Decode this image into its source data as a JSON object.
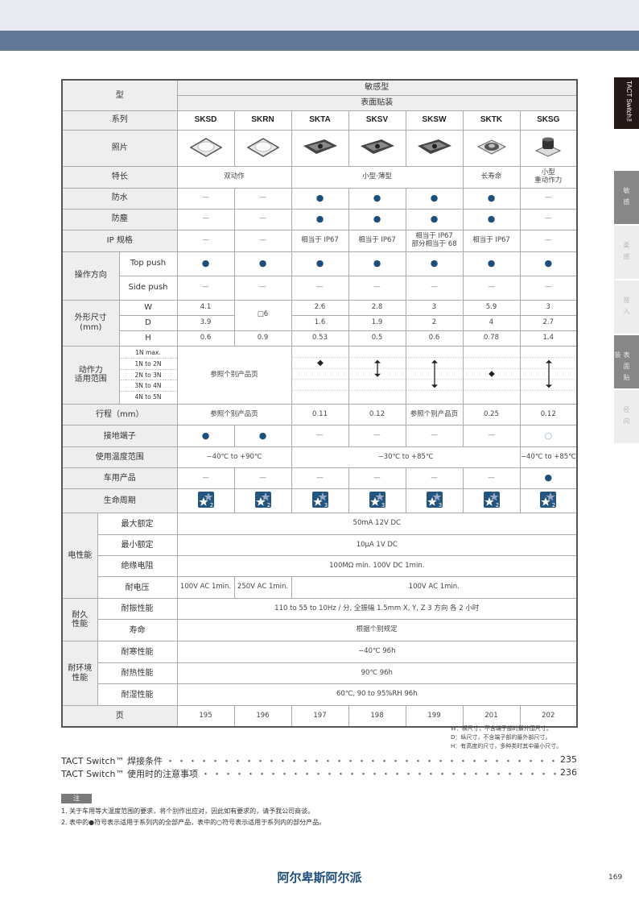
{
  "sidebar": {
    "title": "TACT Switch™",
    "tabs": [
      {
        "label": "敏感",
        "active": true
      },
      {
        "label": "柔感",
        "active": false
      },
      {
        "label": "按入",
        "active": false
      },
      {
        "label": "表面贴装",
        "active": true
      },
      {
        "label": "径向",
        "active": false
      }
    ]
  },
  "colors": {
    "accent": "#1d4f7c",
    "band": "#627896"
  },
  "table": {
    "type_label": "型",
    "category": "敏感型",
    "mount": "表面贴装",
    "series_label": "系列",
    "series": [
      "SKSD",
      "SKRN",
      "SKTA",
      "SKSV",
      "SKSW",
      "SKTK",
      "SKSG"
    ],
    "photo_label": "照片",
    "photos": [
      "light-square-switch",
      "light-square-switch",
      "dark-rect-switch",
      "dark-rect-switch",
      "dark-rect-switch",
      "round-switch",
      "tall-switch"
    ],
    "features": {
      "label": "特长",
      "values": [
        "双动作",
        "小型·薄型",
        "长寿命",
        "小型\n重动作力"
      ]
    },
    "waterproof": {
      "label": "防水",
      "values": [
        "—",
        "—",
        "●",
        "●",
        "●",
        "●",
        "—"
      ]
    },
    "dustproof": {
      "label": "防塵",
      "values": [
        "—",
        "—",
        "●",
        "●",
        "●",
        "●",
        "—"
      ]
    },
    "ip": {
      "label": "IP 规格",
      "values": [
        "—",
        "—",
        "相当于 IP67",
        "相当于 IP67",
        "相当于 IP67\n部分相当于 68",
        "相当于 IP67",
        "—"
      ]
    },
    "op_dir": {
      "label": "操作方向",
      "top": {
        "label": "Top push",
        "values": [
          "●",
          "●",
          "●",
          "●",
          "●",
          "●",
          "●"
        ]
      },
      "side": {
        "label": "Side push",
        "values": [
          "—",
          "—",
          "—",
          "—",
          "—",
          "—",
          "—"
        ]
      }
    },
    "dims": {
      "label": "外形尺寸\n(mm)",
      "W": {
        "label": "W",
        "values": [
          "4.1",
          "□6",
          "2.6",
          "2.8",
          "3",
          "5.9",
          "3"
        ]
      },
      "D": {
        "label": "D",
        "values": [
          "3.9",
          "1.6",
          "1.9",
          "2",
          "4",
          "2.7"
        ]
      },
      "H": {
        "label": "H",
        "values": [
          "0.6",
          "0.9",
          "0.53",
          "0.5",
          "0.6",
          "0.78",
          "1.4"
        ]
      }
    },
    "force": {
      "label": "动作力\n适用范围",
      "ranges": [
        "1N max.",
        "1N to 2N",
        "2N to 3N",
        "3N to 4N",
        "4N to 5N"
      ],
      "merged": "参照个别产品页",
      "arrows": [
        [
          1,
          1
        ],
        [
          1,
          2
        ],
        [
          1,
          3
        ],
        [
          2,
          2
        ],
        [
          1,
          3
        ]
      ]
    },
    "stroke": {
      "label": "行程（mm）",
      "values": [
        "参照个别产品页",
        "0.11",
        "0.12",
        "参照个别产品页",
        "0.25",
        "0.12"
      ]
    },
    "ground": {
      "label": "接地端子",
      "values": [
        "●",
        "●",
        "—",
        "—",
        "—",
        "—",
        "○"
      ]
    },
    "temp": {
      "label": "使用温度范围",
      "values": [
        "−40℃ to +90℃",
        "−30℃ to +85℃",
        "−40℃ to +85℃"
      ]
    },
    "auto": {
      "label": "车用产品",
      "values": [
        "—",
        "—",
        "—",
        "—",
        "—",
        "—",
        "●"
      ]
    },
    "life": {
      "label": "生命周期",
      "values": [
        "2",
        "2",
        "3",
        "3",
        "3",
        "2",
        "2"
      ]
    },
    "electric": {
      "label": "电性能",
      "max": {
        "label": "最大额定",
        "value": "50mA 12V DC"
      },
      "min": {
        "label": "最小额定",
        "value": "10μA 1V DC"
      },
      "insul": {
        "label": "绝缘电阻",
        "value": "100MΩ min. 100V DC 1min."
      },
      "volt": {
        "label": "耐电压",
        "values": [
          "100V AC 1min.",
          "250V AC 1min.",
          "100V AC 1min."
        ]
      }
    },
    "durability": {
      "label": "耐久\n性能",
      "vib": {
        "label": "耐振性能",
        "value": "110 to 55 to 10Hz / 分, 全振幅 1.5mm  X, Y, Z 3 方向  各 2 小时"
      },
      "life": {
        "label": "寿命",
        "value": "根据个别规定"
      }
    },
    "env": {
      "label": "耐环境\n性能",
      "cold": {
        "label": "耐寒性能",
        "value": "−40℃ 96h"
      },
      "heat": {
        "label": "耐热性能",
        "value": "90℃ 96h"
      },
      "humid": {
        "label": "耐湿性能",
        "value": "60℃, 90 to 95%RH 96h"
      }
    },
    "page": {
      "label": "页",
      "values": [
        "195",
        "196",
        "197",
        "198",
        "199",
        "201",
        "202"
      ]
    }
  },
  "dim_notes": [
    "W：横尺寸，不含端子部的最外围尺寸。",
    "D：纵尺寸，不含端子部的最外部尺寸。",
    "H：有高度的尺寸，多种类时其中最小尺寸。"
  ],
  "toc": [
    {
      "label": "TACT Switch™ 焊接条件",
      "page": "235"
    },
    {
      "label": "TACT Switch™ 使用时的注意事项",
      "page": "236"
    }
  ],
  "notes": {
    "title": "注",
    "items": [
      "1.  关于车用等大温度范围的要求，将个别作出应对，因此如有要求的，请予我公司商谈。",
      "2.  表中的●符号表示适用于系列内的全部产品，表中的○符号表示适用于系列内的部分产品。"
    ]
  },
  "brand": "阿尔卑斯阿尔派",
  "page_number": "169"
}
